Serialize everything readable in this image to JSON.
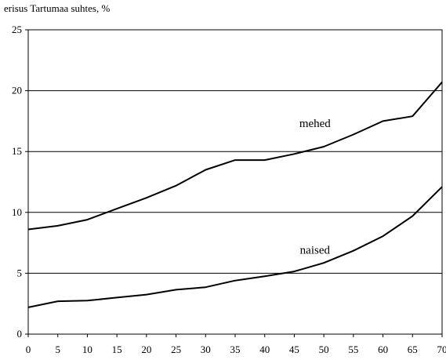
{
  "chart_data": {
    "type": "line",
    "title": "",
    "xlabel": "",
    "ylabel": "erisus Tartumaa suhtes, %",
    "x": [
      0,
      5,
      10,
      15,
      20,
      25,
      30,
      35,
      40,
      45,
      50,
      55,
      60,
      65,
      70
    ],
    "xlim": [
      0,
      70
    ],
    "ylim": [
      0,
      25
    ],
    "x_ticks": [
      "0",
      "5",
      "10",
      "15",
      "20",
      "25",
      "30",
      "35",
      "40",
      "45",
      "50",
      "55",
      "60",
      "65",
      "70"
    ],
    "y_ticks": [
      "0",
      "5",
      "10",
      "15",
      "20",
      "25"
    ],
    "grid": "horizontal",
    "legend": "none",
    "series": [
      {
        "name": "mehed",
        "color": "#000000",
        "values": [
          8.6,
          8.9,
          9.4,
          10.3,
          11.2,
          12.2,
          13.5,
          14.3,
          14.3,
          14.8,
          15.4,
          16.4,
          17.5,
          17.9,
          20.7
        ]
      },
      {
        "name": "naised",
        "color": "#000000",
        "values": [
          2.2,
          2.7,
          2.75,
          3.0,
          3.25,
          3.65,
          3.85,
          4.4,
          4.75,
          5.15,
          5.85,
          6.85,
          8.05,
          9.7,
          12.1
        ]
      }
    ]
  }
}
